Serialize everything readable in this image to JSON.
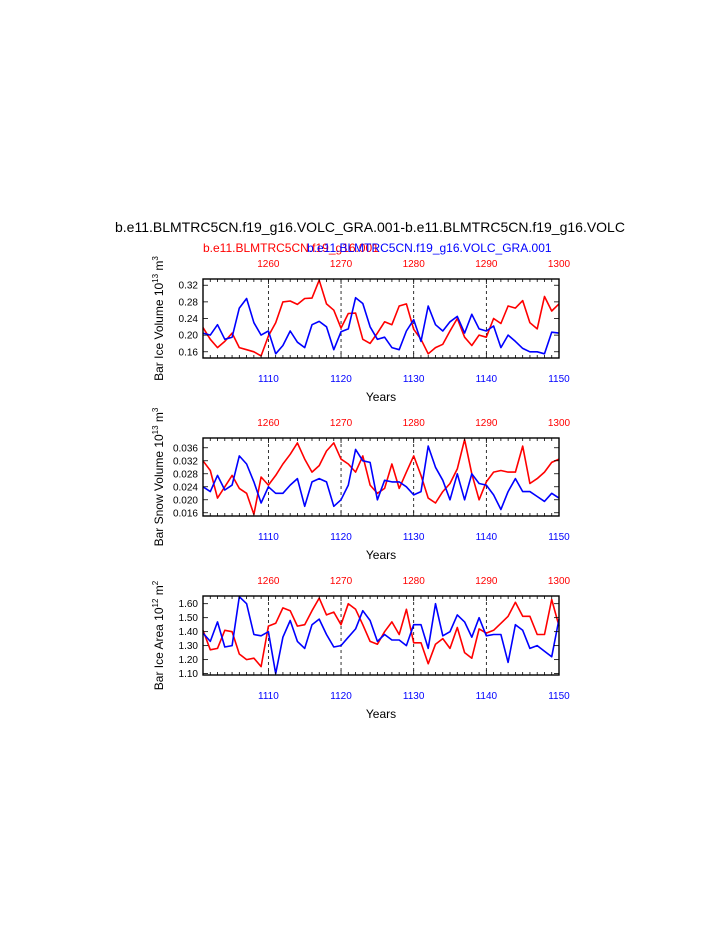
{
  "title": "b.e11.BLMTRC5CN.f19_g16.VOLC_GRA.001-b.e11.BLMTRC5CN.f19_g16.VOLC",
  "subtitle_red": "b.e11.BLMTRC5CN.f19_g16.001",
  "subtitle_blue": "b.e11.BLMTRC5CN.f19_g16.VOLC_GRA.001",
  "colors": {
    "red": "#ff0000",
    "blue": "#0000ff",
    "axis": "#000000"
  },
  "chart_data": [
    {
      "type": "line",
      "ylabel": "Bar Ice Volume 10",
      "ylabel_exp": "13",
      "ylabel_unit": "m",
      "ylabel_unit_exp": "3",
      "xlabel": "Years",
      "ylim": [
        0.145,
        0.335
      ],
      "yticks": [
        0.16,
        0.2,
        0.24,
        0.28,
        0.32
      ],
      "ytick_labels": [
        "0.16",
        "0.20",
        "0.24",
        "0.28",
        "0.32"
      ],
      "bottom_xlim": [
        1101,
        1150
      ],
      "bottom_xticks": [
        "1110",
        "1120",
        "1130",
        "1140",
        "1150"
      ],
      "top_xlim": [
        1251,
        1300
      ],
      "top_xticks": [
        "1260",
        "1270",
        "1280",
        "1290",
        "1300"
      ],
      "series": [
        {
          "color": "red",
          "axis": "top",
          "x_start": 1251,
          "values": [
            0.218,
            0.19,
            0.17,
            0.185,
            0.205,
            0.17,
            0.165,
            0.16,
            0.15,
            0.198,
            0.23,
            0.28,
            0.282,
            0.274,
            0.288,
            0.289,
            0.332,
            0.275,
            0.26,
            0.217,
            0.252,
            0.253,
            0.19,
            0.18,
            0.205,
            0.232,
            0.225,
            0.27,
            0.275,
            0.214,
            0.19,
            0.155,
            0.17,
            0.178,
            0.21,
            0.24,
            0.195,
            0.175,
            0.2,
            0.195,
            0.24,
            0.228,
            0.27,
            0.265,
            0.283,
            0.23,
            0.215,
            0.293,
            0.258,
            0.275
          ]
        },
        {
          "color": "blue",
          "axis": "bottom",
          "x_start": 1101,
          "values": [
            0.205,
            0.2,
            0.225,
            0.19,
            0.195,
            0.265,
            0.288,
            0.23,
            0.2,
            0.21,
            0.155,
            0.175,
            0.21,
            0.183,
            0.17,
            0.225,
            0.233,
            0.22,
            0.165,
            0.208,
            0.215,
            0.29,
            0.276,
            0.22,
            0.19,
            0.195,
            0.17,
            0.165,
            0.21,
            0.237,
            0.185,
            0.27,
            0.225,
            0.21,
            0.232,
            0.245,
            0.205,
            0.25,
            0.215,
            0.21,
            0.222,
            0.17,
            0.2,
            0.185,
            0.168,
            0.16,
            0.16,
            0.155,
            0.207,
            0.205
          ]
        }
      ]
    },
    {
      "type": "line",
      "ylabel": "Bar Snow Volume 10",
      "ylabel_exp": "13",
      "ylabel_unit": "m",
      "ylabel_unit_exp": "3",
      "xlabel": "Years",
      "ylim": [
        0.015,
        0.039
      ],
      "yticks": [
        0.016,
        0.02,
        0.024,
        0.028,
        0.032,
        0.036
      ],
      "ytick_labels": [
        "0.016",
        "0.020",
        "0.024",
        "0.028",
        "0.032",
        "0.036"
      ],
      "bottom_xlim": [
        1101,
        1150
      ],
      "bottom_xticks": [
        "1110",
        "1120",
        "1130",
        "1140",
        "1150"
      ],
      "top_xlim": [
        1251,
        1300
      ],
      "top_xticks": [
        "1260",
        "1270",
        "1280",
        "1290",
        "1300"
      ],
      "series": [
        {
          "color": "red",
          "axis": "top",
          "x_start": 1251,
          "values": [
            0.032,
            0.029,
            0.0205,
            0.024,
            0.0275,
            0.0235,
            0.022,
            0.0155,
            0.027,
            0.0245,
            0.0275,
            0.031,
            0.034,
            0.0375,
            0.0325,
            0.0285,
            0.0305,
            0.035,
            0.0375,
            0.0325,
            0.031,
            0.0285,
            0.0335,
            0.0245,
            0.022,
            0.0235,
            0.031,
            0.0235,
            0.0285,
            0.0335,
            0.0275,
            0.0205,
            0.019,
            0.0225,
            0.025,
            0.0295,
            0.0385,
            0.028,
            0.02,
            0.0255,
            0.0285,
            0.029,
            0.0285,
            0.0285,
            0.0365,
            0.025,
            0.0265,
            0.0285,
            0.0315,
            0.0325
          ]
        },
        {
          "color": "blue",
          "axis": "bottom",
          "x_start": 1101,
          "values": [
            0.024,
            0.0225,
            0.0275,
            0.023,
            0.0245,
            0.0335,
            0.031,
            0.0255,
            0.019,
            0.024,
            0.022,
            0.022,
            0.0245,
            0.0265,
            0.018,
            0.0255,
            0.0265,
            0.0255,
            0.018,
            0.02,
            0.0245,
            0.0355,
            0.032,
            0.0315,
            0.02,
            0.026,
            0.0255,
            0.0255,
            0.024,
            0.0215,
            0.0225,
            0.0365,
            0.03,
            0.026,
            0.02,
            0.028,
            0.02,
            0.028,
            0.025,
            0.0245,
            0.0215,
            0.017,
            0.0225,
            0.0265,
            0.0225,
            0.0225,
            0.021,
            0.0195,
            0.022,
            0.0205
          ]
        }
      ]
    },
    {
      "type": "line",
      "ylabel": "Bar Ice Area 10",
      "ylabel_exp": "12",
      "ylabel_unit": "m",
      "ylabel_unit_exp": "2",
      "xlabel": "Years",
      "ylim": [
        1.09,
        1.655
      ],
      "yticks": [
        1.1,
        1.2,
        1.3,
        1.4,
        1.5,
        1.6
      ],
      "ytick_labels": [
        "1.10",
        "1.20",
        "1.30",
        "1.40",
        "1.50",
        "1.60"
      ],
      "bottom_xlim": [
        1101,
        1150
      ],
      "bottom_xticks": [
        "1110",
        "1120",
        "1130",
        "1140",
        "1150"
      ],
      "top_xlim": [
        1251,
        1300
      ],
      "top_xticks": [
        "1260",
        "1270",
        "1280",
        "1290",
        "1300"
      ],
      "series": [
        {
          "color": "red",
          "axis": "top",
          "x_start": 1251,
          "values": [
            1.41,
            1.27,
            1.28,
            1.41,
            1.4,
            1.24,
            1.2,
            1.21,
            1.15,
            1.44,
            1.46,
            1.57,
            1.55,
            1.44,
            1.45,
            1.55,
            1.64,
            1.52,
            1.54,
            1.45,
            1.6,
            1.56,
            1.45,
            1.33,
            1.31,
            1.4,
            1.47,
            1.38,
            1.56,
            1.32,
            1.32,
            1.17,
            1.31,
            1.35,
            1.28,
            1.43,
            1.25,
            1.21,
            1.42,
            1.39,
            1.41,
            1.46,
            1.51,
            1.61,
            1.51,
            1.51,
            1.38,
            1.38,
            1.63,
            1.44
          ]
        },
        {
          "color": "blue",
          "axis": "bottom",
          "x_start": 1101,
          "values": [
            1.39,
            1.33,
            1.47,
            1.29,
            1.3,
            1.65,
            1.6,
            1.38,
            1.37,
            1.4,
            1.1,
            1.36,
            1.48,
            1.33,
            1.28,
            1.45,
            1.49,
            1.38,
            1.29,
            1.3,
            1.36,
            1.42,
            1.55,
            1.48,
            1.33,
            1.38,
            1.34,
            1.34,
            1.3,
            1.45,
            1.45,
            1.28,
            1.6,
            1.37,
            1.4,
            1.52,
            1.47,
            1.36,
            1.5,
            1.37,
            1.38,
            1.38,
            1.18,
            1.45,
            1.41,
            1.28,
            1.3,
            1.26,
            1.22,
            1.49
          ]
        }
      ]
    }
  ]
}
